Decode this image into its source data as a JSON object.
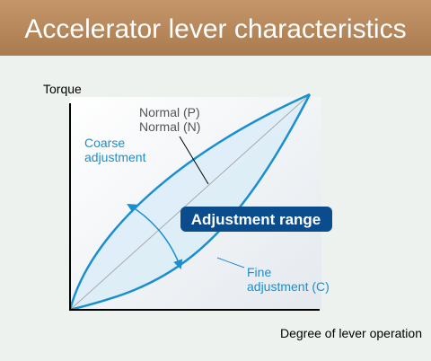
{
  "header": {
    "title": "Accelerator lever characteristics"
  },
  "axes": {
    "y_label": "Torque",
    "x_label": "Degree of lever operation"
  },
  "labels": {
    "normal": [
      "Normal (P)",
      "Normal (N)"
    ],
    "coarse": [
      "Coarse",
      "adjustment"
    ],
    "range": "Adjustment range",
    "fine": [
      "Fine",
      "adjustment (C)"
    ]
  }
}
